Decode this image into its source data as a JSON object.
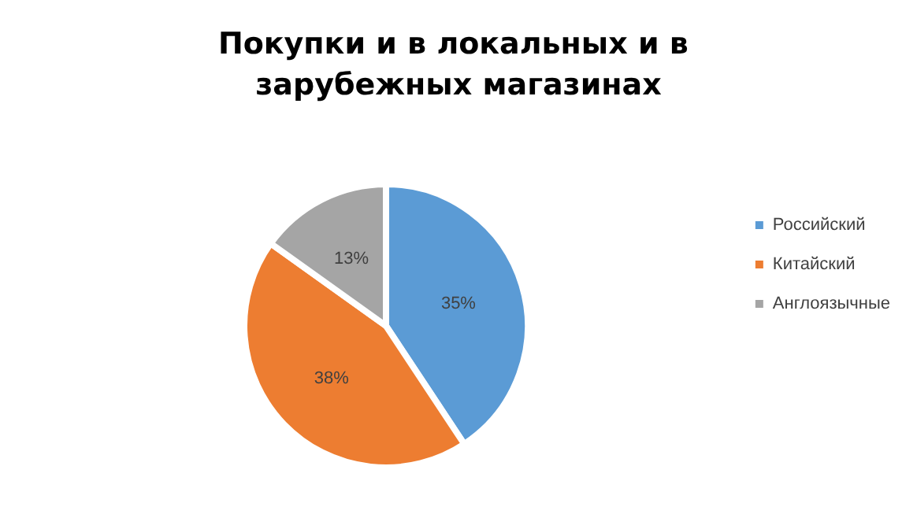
{
  "chart_data": {
    "type": "pie",
    "title": "Покупки и в локальных и в зарубежных магазинах",
    "categories": [
      "Российский",
      "Китайский",
      "Англоязычные"
    ],
    "values": [
      35,
      38,
      13
    ],
    "colors": [
      "#5b9bd5",
      "#ed7d31",
      "#a5a5a5"
    ],
    "value_labels": [
      "35%",
      "38%",
      "13%"
    ],
    "legend": "right"
  }
}
